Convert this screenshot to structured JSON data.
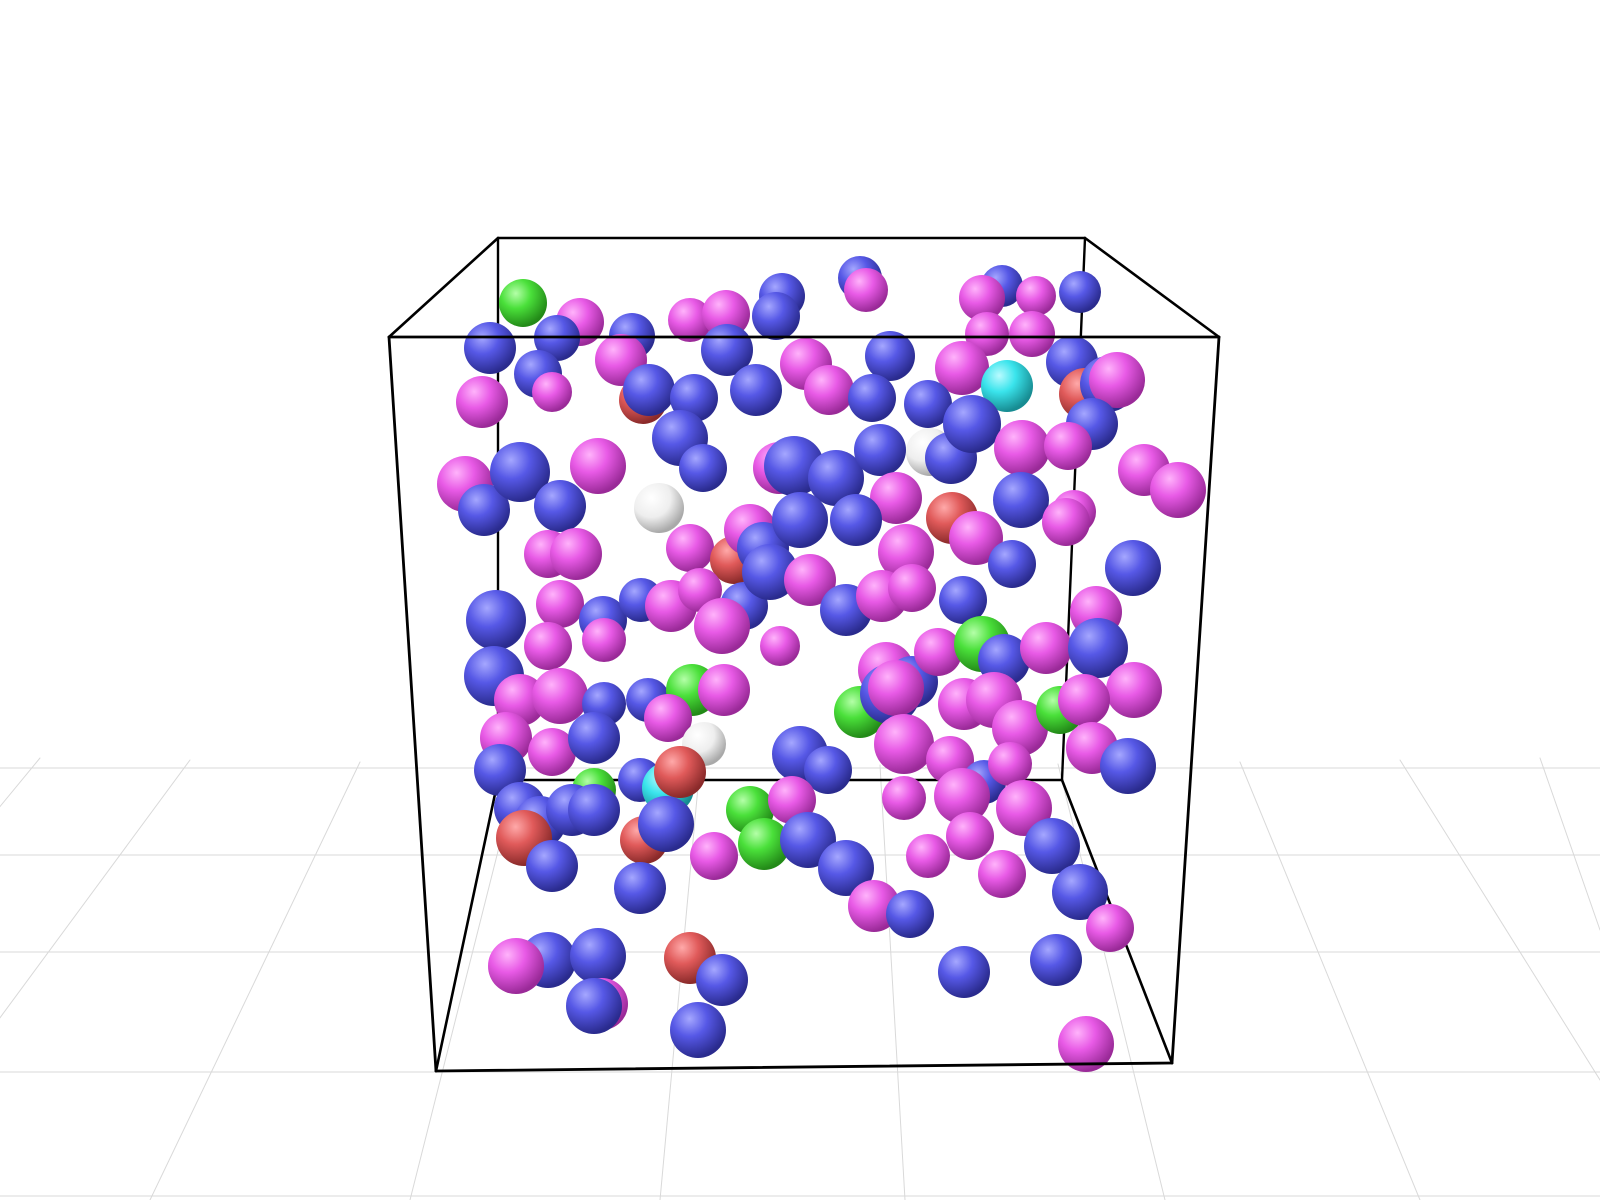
{
  "scene": {
    "background": "#ffffff",
    "grid_color": "#d9d9d9",
    "box_edge_color": "#000000",
    "particle_types": [
      {
        "name": "type-magenta",
        "color": "#e85ae6"
      },
      {
        "name": "type-blue",
        "color": "#5658e6"
      },
      {
        "name": "type-red",
        "color": "#e05a5a"
      },
      {
        "name": "type-green",
        "color": "#4ae03a"
      },
      {
        "name": "type-cyan",
        "color": "#3ae4ec"
      },
      {
        "name": "type-white",
        "color": "#eeeeee"
      }
    ]
  }
}
